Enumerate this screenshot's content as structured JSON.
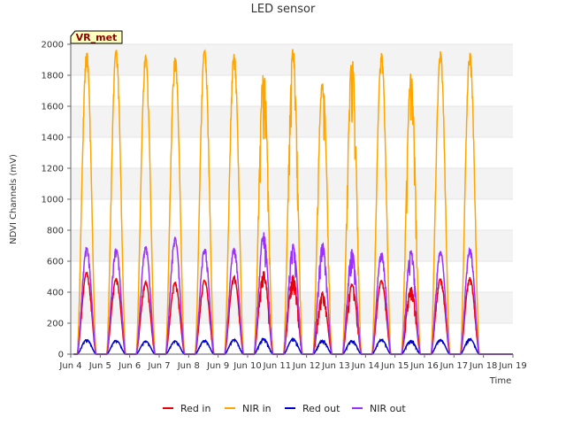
{
  "chart_data": {
    "type": "line",
    "title": "LED sensor",
    "xlabel": "Time",
    "ylabel": "NDVI Channels (mV)",
    "site_label": "VR_met",
    "ylim": [
      0,
      2000
    ],
    "yticks": [
      0,
      200,
      400,
      600,
      800,
      1000,
      1200,
      1400,
      1600,
      1800,
      2000
    ],
    "xlim": [
      "2024-06-04",
      "2024-06-19"
    ],
    "xticks": [
      "Jun 4",
      "Jun 5",
      "Jun 6",
      "Jun 7",
      "Jun 8",
      "Jun 9",
      "Jun 10",
      "Jun 11",
      "Jun 12",
      "Jun 13",
      "Jun 14",
      "Jun 15",
      "Jun 16",
      "Jun 17",
      "Jun 18",
      "Jun 19"
    ],
    "grid": "horizontal bands",
    "legend_position": "bottom",
    "days": [
      "2024-06-04",
      "2024-06-05",
      "2024-06-06",
      "2024-06-07",
      "2024-06-08",
      "2024-06-09",
      "2024-06-10",
      "2024-06-11",
      "2024-06-12",
      "2024-06-13",
      "2024-06-14",
      "2024-06-15",
      "2024-06-16",
      "2024-06-17",
      "2024-06-18"
    ],
    "series": [
      {
        "name": "Red in",
        "color": "#e8000b",
        "daily_peak": [
          530,
          490,
          470,
          470,
          480,
          505,
          540,
          515,
          400,
          460,
          480,
          440,
          490,
          500,
          0
        ]
      },
      {
        "name": "NIR in",
        "color": "#ffa500",
        "daily_peak": [
          1960,
          1970,
          1940,
          1940,
          1975,
          1950,
          1850,
          1990,
          1800,
          1930,
          1950,
          1820,
          1960,
          1960,
          0
        ]
      },
      {
        "name": "Red out",
        "color": "#0000cc",
        "daily_peak": [
          95,
          90,
          85,
          85,
          90,
          95,
          100,
          100,
          90,
          90,
          95,
          90,
          95,
          100,
          0
        ]
      },
      {
        "name": "NIR out",
        "color": "#9b30ff",
        "daily_peak": [
          690,
          690,
          700,
          760,
          690,
          690,
          790,
          720,
          720,
          680,
          660,
          680,
          670,
          690,
          0
        ]
      }
    ]
  }
}
